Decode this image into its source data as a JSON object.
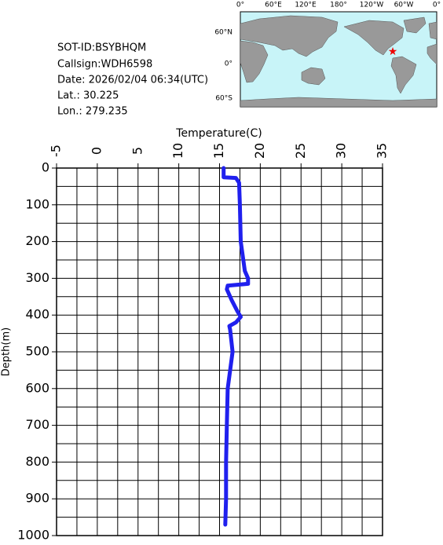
{
  "header": {
    "lines": [
      "SOT-ID:BSYBHQM",
      "Callsign:WDH6598",
      "Date:  2026/02/04 06:34(UTC)",
      "Lat.:   30.225",
      "Lon.:  279.235"
    ]
  },
  "map": {
    "lon_labels": [
      "0°",
      "60°E",
      "120°E",
      "180°",
      "120°W",
      "60°W",
      "0°"
    ],
    "lat_labels": [
      "60°N",
      "0°",
      "60°S"
    ]
  },
  "chart_data": {
    "type": "line",
    "x_label": "Temperature(C)",
    "y_label": "Depth(m)",
    "xlim": [
      -5,
      35
    ],
    "xticks": [
      -5,
      0,
      5,
      10,
      15,
      20,
      25,
      30,
      35
    ],
    "ylim": [
      0,
      1000
    ],
    "y_inverted": true,
    "yticks": [
      0,
      100,
      200,
      300,
      400,
      500,
      600,
      700,
      800,
      900,
      1000
    ],
    "grid": true,
    "series": [
      {
        "color": "#2020ee",
        "x": [
          15.5,
          15.5,
          17.0,
          17.4,
          17.5,
          17.6,
          18.1,
          18.5,
          18.5,
          16.0,
          15.9,
          16.5,
          17.2,
          17.6,
          17.0,
          16.2,
          16.3,
          16.6,
          16.0,
          15.9,
          15.8,
          15.8,
          15.7
        ],
        "values": [
          0,
          25,
          27,
          40,
          100,
          200,
          280,
          300,
          315,
          320,
          330,
          360,
          390,
          405,
          420,
          430,
          440,
          500,
          600,
          700,
          800,
          900,
          970
        ]
      }
    ]
  }
}
